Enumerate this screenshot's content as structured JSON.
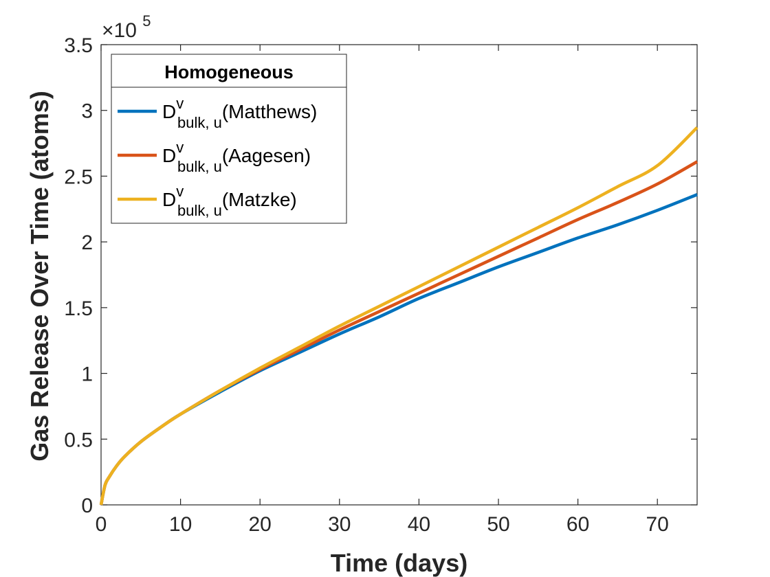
{
  "chart_data": {
    "type": "line",
    "title": "",
    "xlabel": "Time (days)",
    "ylabel": "Gas Release Over Time (atoms)",
    "xlim": [
      0,
      75
    ],
    "ylim": [
      0,
      350000
    ],
    "x_ticks": [
      "0",
      "10",
      "20",
      "30",
      "40",
      "50",
      "60",
      "70"
    ],
    "x_tick_values": [
      0,
      10,
      20,
      30,
      40,
      50,
      60,
      70
    ],
    "y_ticks": [
      "0",
      "0.5",
      "1",
      "1.5",
      "2",
      "2.5",
      "3",
      "3.5"
    ],
    "y_tick_values": [
      0,
      50000,
      100000,
      150000,
      200000,
      250000,
      300000,
      350000
    ],
    "y_exponent": {
      "base": "×10",
      "power": "5"
    },
    "legend": {
      "title": "Homogeneous",
      "position": "top-left"
    },
    "x": [
      0,
      0.5,
      1,
      2,
      3,
      5,
      7.5,
      10,
      15,
      20,
      25,
      30,
      35,
      40,
      45,
      50,
      55,
      60,
      65,
      70,
      75
    ],
    "series": [
      {
        "name": "Matthews",
        "label_main": "D",
        "label_sup": "v",
        "label_sub": "bulk, u",
        "label_suffix": "(Matthews)",
        "color": "#0072BD",
        "values": [
          0,
          15000,
          21000,
          30000,
          37000,
          48000,
          59000,
          69000,
          86000,
          102000,
          116000,
          130000,
          143000,
          157000,
          169000,
          181000,
          192000,
          203000,
          213000,
          224000,
          236000
        ]
      },
      {
        "name": "Aagesen",
        "label_main": "D",
        "label_sup": "v",
        "label_sub": "bulk, u",
        "label_suffix": "(Aagesen)",
        "color": "#D95319",
        "values": [
          0,
          15000,
          21000,
          30000,
          37000,
          48000,
          59000,
          69000,
          87000,
          103000,
          118000,
          133000,
          147000,
          161000,
          175000,
          189000,
          203000,
          217000,
          230000,
          244000,
          261000
        ]
      },
      {
        "name": "Matzke",
        "label_main": "D",
        "label_sup": "v",
        "label_sub": "bulk, u",
        "label_suffix": "(Matzke)",
        "color": "#EDB120",
        "values": [
          0,
          15000,
          21000,
          30000,
          37000,
          48000,
          59000,
          69000,
          87000,
          104000,
          120000,
          136000,
          151000,
          166000,
          181000,
          196000,
          211000,
          226000,
          242000,
          258000,
          287000
        ]
      }
    ]
  }
}
